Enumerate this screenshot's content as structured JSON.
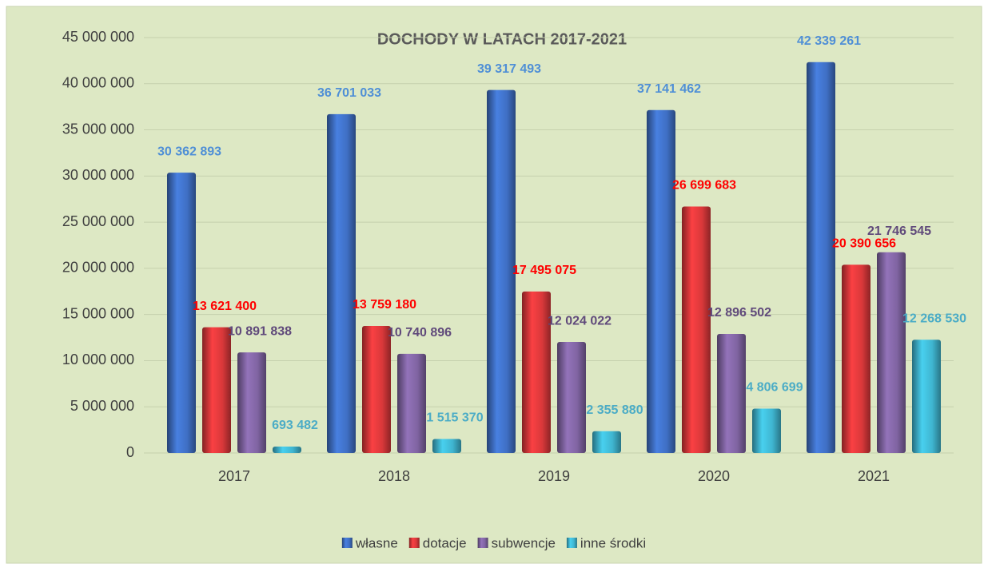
{
  "chart_data": {
    "type": "bar",
    "title": "DOCHODY W LATACH 2017-2021",
    "categories": [
      "2017",
      "2018",
      "2019",
      "2020",
      "2021"
    ],
    "series": [
      {
        "name": "własne",
        "color": "#3f6fc4",
        "label_color": "#4f8fd6",
        "values": [
          30362893,
          36701033,
          39317493,
          37141462,
          42339261
        ],
        "value_labels": [
          "30 362 893",
          "36 701 033",
          "39 317 493",
          "37 141 462",
          "42 339 261"
        ]
      },
      {
        "name": "dotacje",
        "color": "#d9383a",
        "label_color": "#ff0000",
        "values": [
          13621400,
          13759180,
          17495075,
          26699683,
          20390656
        ],
        "value_labels": [
          "13 621 400",
          "13 759 180",
          "17 495 075",
          "26 699 683",
          "20 390 656"
        ]
      },
      {
        "name": "subwencje",
        "color": "#8064a2",
        "label_color": "#604a7b",
        "values": [
          10891838,
          10740896,
          12024022,
          12896502,
          21746545
        ],
        "value_labels": [
          "10 891 838",
          "10 740 896",
          "12 024 022",
          "12 896 502",
          "21 746 545"
        ]
      },
      {
        "name": "inne środki",
        "color": "#3fb5d0",
        "label_color": "#4bacc6",
        "values": [
          693482,
          1515370,
          2355880,
          4806699,
          12268530
        ],
        "value_labels": [
          "693 482",
          "1 515 370",
          "2 355 880",
          "4 806 699",
          "12 268 530"
        ]
      }
    ],
    "ylim": [
      0,
      45000000
    ],
    "yticks": [
      0,
      {
        "value": 5000000,
        "label": "5 000 000"
      },
      {
        "value": 10000000,
        "label": "10 000 000"
      },
      {
        "value": 15000000,
        "label": "15 000 000"
      },
      {
        "value": 20000000,
        "label": "20 000 000"
      },
      {
        "value": 25000000,
        "label": "25 000 000"
      },
      {
        "value": 30000000,
        "label": "30 000 000"
      },
      {
        "value": 35000000,
        "label": "35 000 000"
      },
      {
        "value": 40000000,
        "label": "40 000 000"
      },
      {
        "value": 45000000,
        "label": "45 000 000"
      }
    ],
    "grid": true,
    "legend": "bottom"
  }
}
